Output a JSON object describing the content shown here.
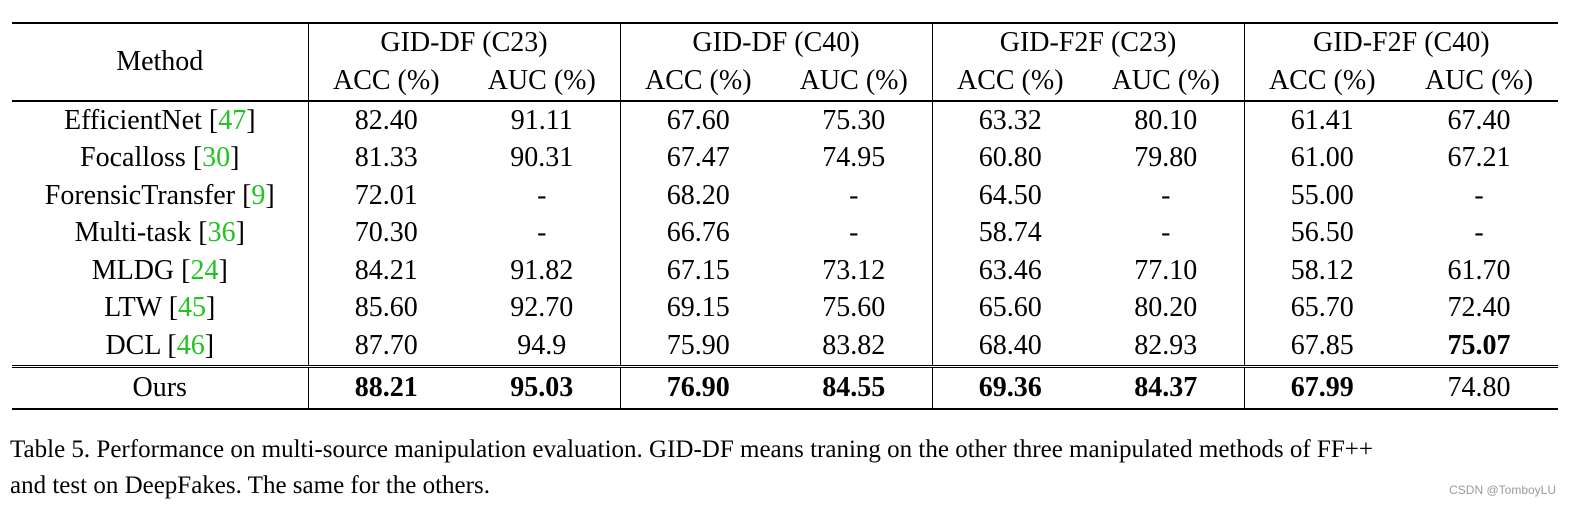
{
  "table": {
    "method_header": "Method",
    "groups": [
      "GID-DF (C23)",
      "GID-DF (C40)",
      "GID-F2F (C23)",
      "GID-F2F (C40)"
    ],
    "sub_headers": [
      "ACC (%)",
      "AUC (%)",
      "ACC (%)",
      "AUC (%)",
      "ACC (%)",
      "AUC (%)",
      "ACC (%)",
      "AUC (%)"
    ],
    "rows": [
      {
        "method": "EfficientNet",
        "ref": "47",
        "values": [
          "82.40",
          "91.11",
          "67.60",
          "75.30",
          "63.32",
          "80.10",
          "61.41",
          "67.40"
        ]
      },
      {
        "method": "Focalloss",
        "ref": "30",
        "values": [
          "81.33",
          "90.31",
          "67.47",
          "74.95",
          "60.80",
          "79.80",
          "61.00",
          "67.21"
        ]
      },
      {
        "method": "ForensicTransfer",
        "ref": "9",
        "values": [
          "72.01",
          "-",
          "68.20",
          "-",
          "64.50",
          "-",
          "55.00",
          "-"
        ]
      },
      {
        "method": "Multi-task",
        "ref": "36",
        "values": [
          "70.30",
          "-",
          "66.76",
          "-",
          "58.74",
          "-",
          "56.50",
          "-"
        ]
      },
      {
        "method": "MLDG",
        "ref": "24",
        "values": [
          "84.21",
          "91.82",
          "67.15",
          "73.12",
          "63.46",
          "77.10",
          "58.12",
          "61.70"
        ]
      },
      {
        "method": "LTW",
        "ref": "45",
        "values": [
          "85.60",
          "92.70",
          "69.15",
          "75.60",
          "65.60",
          "80.20",
          "65.70",
          "72.40"
        ]
      },
      {
        "method": "DCL",
        "ref": "46",
        "values": [
          "87.70",
          "94.9",
          "75.90",
          "83.82",
          "68.40",
          "82.93",
          "67.85",
          "75.07"
        ]
      },
      {
        "method": "Ours",
        "ref": "",
        "values": [
          "88.21",
          "95.03",
          "76.90",
          "84.55",
          "69.36",
          "84.37",
          "67.99",
          "74.80"
        ]
      }
    ]
  },
  "caption": {
    "line1": "Table 5. Performance on multi-source manipulation evaluation. GID-DF means traning on the other three manipulated methods of FF++",
    "line2": "and test on DeepFakes. The same for the others."
  },
  "watermark": "CSDN @TomboyLU"
}
